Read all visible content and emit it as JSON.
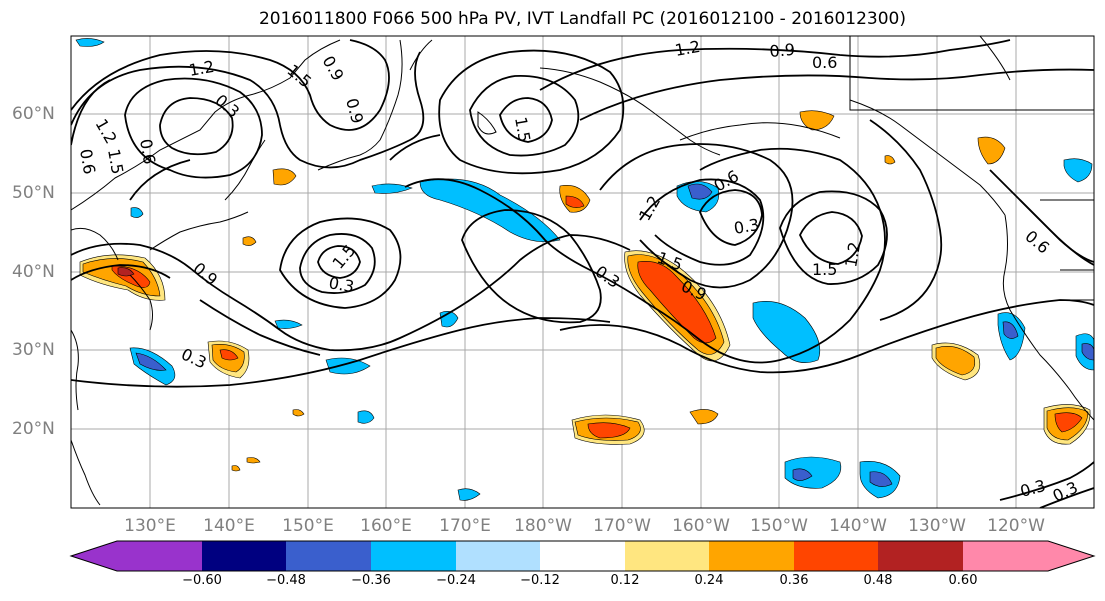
{
  "title": "2016011800 F066 500 hPa PV, IVT Landfall PC (2016012100 - 2016012300)",
  "lat_labels": [
    "60°N",
    "50°N",
    "40°N",
    "30°N",
    "20°N"
  ],
  "lon_labels": [
    "130°E",
    "140°E",
    "150°E",
    "160°E",
    "170°E",
    "180°W",
    "170°W",
    "160°W",
    "150°W",
    "140°W",
    "130°W",
    "120°W"
  ],
  "contour_labels": [
    "1.2",
    "1.5",
    "0.9",
    "0.9",
    "0.3",
    "0.6",
    "1.2",
    "1.5",
    "0.9",
    "0.6",
    "1.5",
    "1.2",
    "0.9",
    "0.6",
    "0.3",
    "1.2",
    "1.5",
    "0.6",
    "0.3",
    "1.5",
    "1.2",
    "0.6",
    "1.5",
    "0.9",
    "0.3",
    "0.3",
    "0.3",
    "0.3"
  ],
  "colorbar": {
    "ticks": [
      "−0.60",
      "−0.48",
      "−0.36",
      "−0.24",
      "−0.12",
      "0.12",
      "0.24",
      "0.36",
      "0.48",
      "0.60"
    ],
    "colors": [
      "#9933cc",
      "#000080",
      "#3a5fcd",
      "#00bfff",
      "#b0e0ff",
      "#ffffff",
      "#ffe680",
      "#ffa500",
      "#ff4500",
      "#b22222",
      "#ff88aa"
    ]
  },
  "fill_colors": {
    "neg_light": "#b0e0ff",
    "neg_mid": "#00bfff",
    "neg_strong": "#3a5fcd",
    "neg_vstrong": "#000080",
    "pos_light": "#ffe680",
    "pos_mid": "#ffa500",
    "pos_strong": "#ff4500",
    "pos_vstrong": "#b22222"
  }
}
